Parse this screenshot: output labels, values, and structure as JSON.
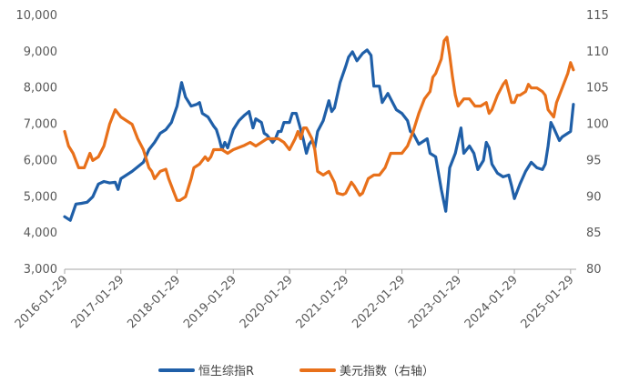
{
  "chart_data": {
    "type": "line",
    "legend_position": "bottom",
    "grid": false,
    "x_ticks": [
      "2016-01-29",
      "2017-01-29",
      "2018-01-29",
      "2019-01-29",
      "2020-01-29",
      "2021-01-29",
      "2022-01-29",
      "2023-01-29",
      "2024-01-29",
      "2025-01-29"
    ],
    "x_range": [
      2016.0,
      2025.1
    ],
    "y_left": {
      "min": 3000,
      "max": 10000,
      "ticks": [
        "3,000",
        "4,000",
        "5,000",
        "6,000",
        "7,000",
        "8,000",
        "9,000",
        "10,000"
      ]
    },
    "y_right": {
      "min": 80,
      "max": 115,
      "ticks": [
        "80",
        "85",
        "90",
        "95",
        "100",
        "105",
        "110",
        "115"
      ]
    },
    "series": [
      {
        "name": "恒生综指R",
        "axis": "left",
        "color": "#1f5fa8",
        "points": [
          [
            2016.0,
            4450
          ],
          [
            2016.1,
            4350
          ],
          [
            2016.2,
            4800
          ],
          [
            2016.3,
            4820
          ],
          [
            2016.4,
            4850
          ],
          [
            2016.5,
            5000
          ],
          [
            2016.6,
            5350
          ],
          [
            2016.7,
            5420
          ],
          [
            2016.8,
            5380
          ],
          [
            2016.9,
            5400
          ],
          [
            2016.95,
            5200
          ],
          [
            2017.0,
            5500
          ],
          [
            2017.2,
            5700
          ],
          [
            2017.4,
            5950
          ],
          [
            2017.5,
            6300
          ],
          [
            2017.6,
            6500
          ],
          [
            2017.7,
            6750
          ],
          [
            2017.8,
            6850
          ],
          [
            2017.9,
            7050
          ],
          [
            2018.0,
            7500
          ],
          [
            2018.08,
            8150
          ],
          [
            2018.15,
            7750
          ],
          [
            2018.25,
            7500
          ],
          [
            2018.35,
            7550
          ],
          [
            2018.4,
            7600
          ],
          [
            2018.45,
            7300
          ],
          [
            2018.55,
            7200
          ],
          [
            2018.65,
            6950
          ],
          [
            2018.7,
            6850
          ],
          [
            2018.75,
            6600
          ],
          [
            2018.8,
            6300
          ],
          [
            2018.85,
            6500
          ],
          [
            2018.9,
            6350
          ],
          [
            2019.0,
            6850
          ],
          [
            2019.1,
            7100
          ],
          [
            2019.2,
            7250
          ],
          [
            2019.28,
            7350
          ],
          [
            2019.35,
            6900
          ],
          [
            2019.4,
            7150
          ],
          [
            2019.5,
            7050
          ],
          [
            2019.55,
            6750
          ],
          [
            2019.6,
            6700
          ],
          [
            2019.7,
            6500
          ],
          [
            2019.75,
            6600
          ],
          [
            2019.8,
            6800
          ],
          [
            2019.85,
            6800
          ],
          [
            2019.9,
            7050
          ],
          [
            2020.0,
            7050
          ],
          [
            2020.05,
            7300
          ],
          [
            2020.12,
            7300
          ],
          [
            2020.2,
            6850
          ],
          [
            2020.25,
            6550
          ],
          [
            2020.3,
            6200
          ],
          [
            2020.35,
            6450
          ],
          [
            2020.4,
            6550
          ],
          [
            2020.45,
            6350
          ],
          [
            2020.5,
            6800
          ],
          [
            2020.6,
            7100
          ],
          [
            2020.7,
            7650
          ],
          [
            2020.75,
            7350
          ],
          [
            2020.8,
            7450
          ],
          [
            2020.85,
            7800
          ],
          [
            2020.9,
            8150
          ],
          [
            2021.0,
            8600
          ],
          [
            2021.05,
            8850
          ],
          [
            2021.12,
            9000
          ],
          [
            2021.2,
            8750
          ],
          [
            2021.3,
            8950
          ],
          [
            2021.38,
            9050
          ],
          [
            2021.45,
            8900
          ],
          [
            2021.5,
            8050
          ],
          [
            2021.6,
            8050
          ],
          [
            2021.65,
            7600
          ],
          [
            2021.75,
            7850
          ],
          [
            2021.8,
            7700
          ],
          [
            2021.9,
            7400
          ],
          [
            2022.0,
            7300
          ],
          [
            2022.1,
            7100
          ],
          [
            2022.15,
            6800
          ],
          [
            2022.2,
            6750
          ],
          [
            2022.3,
            6450
          ],
          [
            2022.35,
            6500
          ],
          [
            2022.45,
            6600
          ],
          [
            2022.5,
            6200
          ],
          [
            2022.6,
            6100
          ],
          [
            2022.7,
            5200
          ],
          [
            2022.78,
            4600
          ],
          [
            2022.85,
            5800
          ],
          [
            2022.95,
            6200
          ],
          [
            2023.05,
            6900
          ],
          [
            2023.1,
            6200
          ],
          [
            2023.2,
            6400
          ],
          [
            2023.28,
            6200
          ],
          [
            2023.35,
            5750
          ],
          [
            2023.45,
            6000
          ],
          [
            2023.5,
            6500
          ],
          [
            2023.55,
            6350
          ],
          [
            2023.6,
            5900
          ],
          [
            2023.7,
            5650
          ],
          [
            2023.8,
            5550
          ],
          [
            2023.9,
            5600
          ],
          [
            2023.95,
            5300
          ],
          [
            2024.0,
            4950
          ],
          [
            2024.1,
            5350
          ],
          [
            2024.2,
            5700
          ],
          [
            2024.3,
            5950
          ],
          [
            2024.4,
            5800
          ],
          [
            2024.5,
            5750
          ],
          [
            2024.55,
            5900
          ],
          [
            2024.6,
            6400
          ],
          [
            2024.65,
            7050
          ],
          [
            2024.7,
            6900
          ],
          [
            2024.8,
            6550
          ],
          [
            2024.85,
            6650
          ],
          [
            2024.95,
            6750
          ],
          [
            2025.0,
            6800
          ],
          [
            2025.05,
            7550
          ]
        ]
      },
      {
        "name": "美元指数（右轴）",
        "axis": "right",
        "color": "#e8701a",
        "points": [
          [
            2016.0,
            99
          ],
          [
            2016.07,
            97
          ],
          [
            2016.15,
            96
          ],
          [
            2016.25,
            94
          ],
          [
            2016.35,
            94
          ],
          [
            2016.45,
            96
          ],
          [
            2016.5,
            95
          ],
          [
            2016.6,
            95.5
          ],
          [
            2016.7,
            97
          ],
          [
            2016.8,
            100
          ],
          [
            2016.9,
            102
          ],
          [
            2017.0,
            101
          ],
          [
            2017.1,
            100.5
          ],
          [
            2017.2,
            100
          ],
          [
            2017.3,
            98
          ],
          [
            2017.4,
            96.5
          ],
          [
            2017.5,
            94
          ],
          [
            2017.55,
            93.5
          ],
          [
            2017.6,
            92.5
          ],
          [
            2017.7,
            93.5
          ],
          [
            2017.8,
            93.8
          ],
          [
            2017.85,
            92.5
          ],
          [
            2017.95,
            90.5
          ],
          [
            2018.0,
            89.5
          ],
          [
            2018.05,
            89.5
          ],
          [
            2018.15,
            90
          ],
          [
            2018.25,
            92.5
          ],
          [
            2018.3,
            94
          ],
          [
            2018.4,
            94.5
          ],
          [
            2018.5,
            95.5
          ],
          [
            2018.55,
            95
          ],
          [
            2018.6,
            95.5
          ],
          [
            2018.65,
            96.5
          ],
          [
            2018.7,
            96.5
          ],
          [
            2018.8,
            96.5
          ],
          [
            2018.9,
            96
          ],
          [
            2019.0,
            96.5
          ],
          [
            2019.1,
            96.8
          ],
          [
            2019.2,
            97.1
          ],
          [
            2019.3,
            97.5
          ],
          [
            2019.4,
            97
          ],
          [
            2019.5,
            97.5
          ],
          [
            2019.6,
            98
          ],
          [
            2019.7,
            98
          ],
          [
            2019.8,
            98
          ],
          [
            2019.9,
            97.5
          ],
          [
            2020.0,
            96.5
          ],
          [
            2020.1,
            98
          ],
          [
            2020.15,
            99
          ],
          [
            2020.2,
            98
          ],
          [
            2020.25,
            99.5
          ],
          [
            2020.3,
            99.5
          ],
          [
            2020.4,
            98
          ],
          [
            2020.45,
            96.5
          ],
          [
            2020.5,
            93.5
          ],
          [
            2020.6,
            93
          ],
          [
            2020.7,
            93.5
          ],
          [
            2020.8,
            92
          ],
          [
            2020.85,
            90.5
          ],
          [
            2020.95,
            90.3
          ],
          [
            2021.0,
            90.5
          ],
          [
            2021.1,
            92
          ],
          [
            2021.15,
            91.5
          ],
          [
            2021.25,
            90.2
          ],
          [
            2021.3,
            90.5
          ],
          [
            2021.4,
            92.5
          ],
          [
            2021.5,
            93
          ],
          [
            2021.6,
            93
          ],
          [
            2021.7,
            94
          ],
          [
            2021.8,
            96
          ],
          [
            2021.9,
            96
          ],
          [
            2022.0,
            96
          ],
          [
            2022.1,
            97
          ],
          [
            2022.2,
            99
          ],
          [
            2022.3,
            101.5
          ],
          [
            2022.4,
            103.5
          ],
          [
            2022.5,
            104.5
          ],
          [
            2022.55,
            106.5
          ],
          [
            2022.6,
            107
          ],
          [
            2022.7,
            109
          ],
          [
            2022.75,
            111.5
          ],
          [
            2022.8,
            112
          ],
          [
            2022.85,
            109.5
          ],
          [
            2022.9,
            106.5
          ],
          [
            2022.95,
            104
          ],
          [
            2023.0,
            102.5
          ],
          [
            2023.1,
            103.5
          ],
          [
            2023.2,
            103.5
          ],
          [
            2023.3,
            102.5
          ],
          [
            2023.4,
            102.5
          ],
          [
            2023.5,
            103
          ],
          [
            2023.55,
            101.5
          ],
          [
            2023.6,
            102
          ],
          [
            2023.7,
            104
          ],
          [
            2023.8,
            105.5
          ],
          [
            2023.85,
            106
          ],
          [
            2023.9,
            104.5
          ],
          [
            2023.95,
            103
          ],
          [
            2024.0,
            103
          ],
          [
            2024.05,
            104
          ],
          [
            2024.1,
            104
          ],
          [
            2024.2,
            104.5
          ],
          [
            2024.25,
            105.5
          ],
          [
            2024.3,
            105
          ],
          [
            2024.4,
            105
          ],
          [
            2024.5,
            104.5
          ],
          [
            2024.55,
            104
          ],
          [
            2024.6,
            102
          ],
          [
            2024.7,
            101
          ],
          [
            2024.75,
            103
          ],
          [
            2024.85,
            105
          ],
          [
            2024.95,
            107
          ],
          [
            2025.0,
            108.5
          ],
          [
            2025.05,
            107.5
          ]
        ]
      }
    ]
  }
}
